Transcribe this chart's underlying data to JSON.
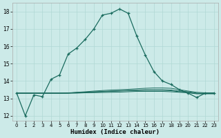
{
  "x": [
    0,
    1,
    2,
    3,
    4,
    5,
    6,
    7,
    8,
    9,
    10,
    11,
    12,
    13,
    14,
    15,
    16,
    17,
    18,
    19,
    20,
    21,
    22,
    23
  ],
  "main_line": [
    13.3,
    12.0,
    13.2,
    13.1,
    14.1,
    14.35,
    15.55,
    15.9,
    16.4,
    17.0,
    17.8,
    17.9,
    18.15,
    17.9,
    16.6,
    15.5,
    14.55,
    14.0,
    13.8,
    13.5,
    13.3,
    13.05,
    13.3,
    13.3
  ],
  "flat_lines": [
    [
      13.3,
      13.3,
      13.3,
      13.3,
      13.3,
      13.3,
      13.3,
      13.35,
      13.38,
      13.42,
      13.45,
      13.48,
      13.5,
      13.52,
      13.55,
      13.58,
      13.6,
      13.6,
      13.58,
      13.5,
      13.42,
      13.35,
      13.32,
      13.32
    ],
    [
      13.3,
      13.3,
      13.3,
      13.3,
      13.3,
      13.3,
      13.32,
      13.34,
      13.36,
      13.38,
      13.4,
      13.42,
      13.44,
      13.46,
      13.48,
      13.5,
      13.5,
      13.5,
      13.48,
      13.42,
      13.38,
      13.3,
      13.3,
      13.3
    ],
    [
      13.3,
      13.3,
      13.3,
      13.3,
      13.3,
      13.3,
      13.3,
      13.32,
      13.34,
      13.36,
      13.38,
      13.4,
      13.42,
      13.44,
      13.45,
      13.46,
      13.46,
      13.46,
      13.44,
      13.38,
      13.34,
      13.28,
      13.28,
      13.28
    ],
    [
      13.3,
      13.3,
      13.3,
      13.3,
      13.3,
      13.3,
      13.3,
      13.3,
      13.32,
      13.33,
      13.34,
      13.35,
      13.36,
      13.38,
      13.4,
      13.4,
      13.4,
      13.4,
      13.38,
      13.35,
      13.32,
      13.26,
      13.26,
      13.26
    ]
  ],
  "line_color": "#1a6b5e",
  "bg_color": "#cceae8",
  "grid_color": "#b0d8d4",
  "ylim": [
    11.7,
    18.5
  ],
  "xlim": [
    -0.5,
    23.5
  ],
  "yticks": [
    12,
    13,
    14,
    15,
    16,
    17,
    18
  ],
  "xticks": [
    0,
    1,
    2,
    3,
    4,
    5,
    6,
    7,
    8,
    9,
    10,
    11,
    12,
    13,
    14,
    15,
    16,
    17,
    18,
    19,
    20,
    21,
    22,
    23
  ],
  "xlabel": "Humidex (Indice chaleur)"
}
